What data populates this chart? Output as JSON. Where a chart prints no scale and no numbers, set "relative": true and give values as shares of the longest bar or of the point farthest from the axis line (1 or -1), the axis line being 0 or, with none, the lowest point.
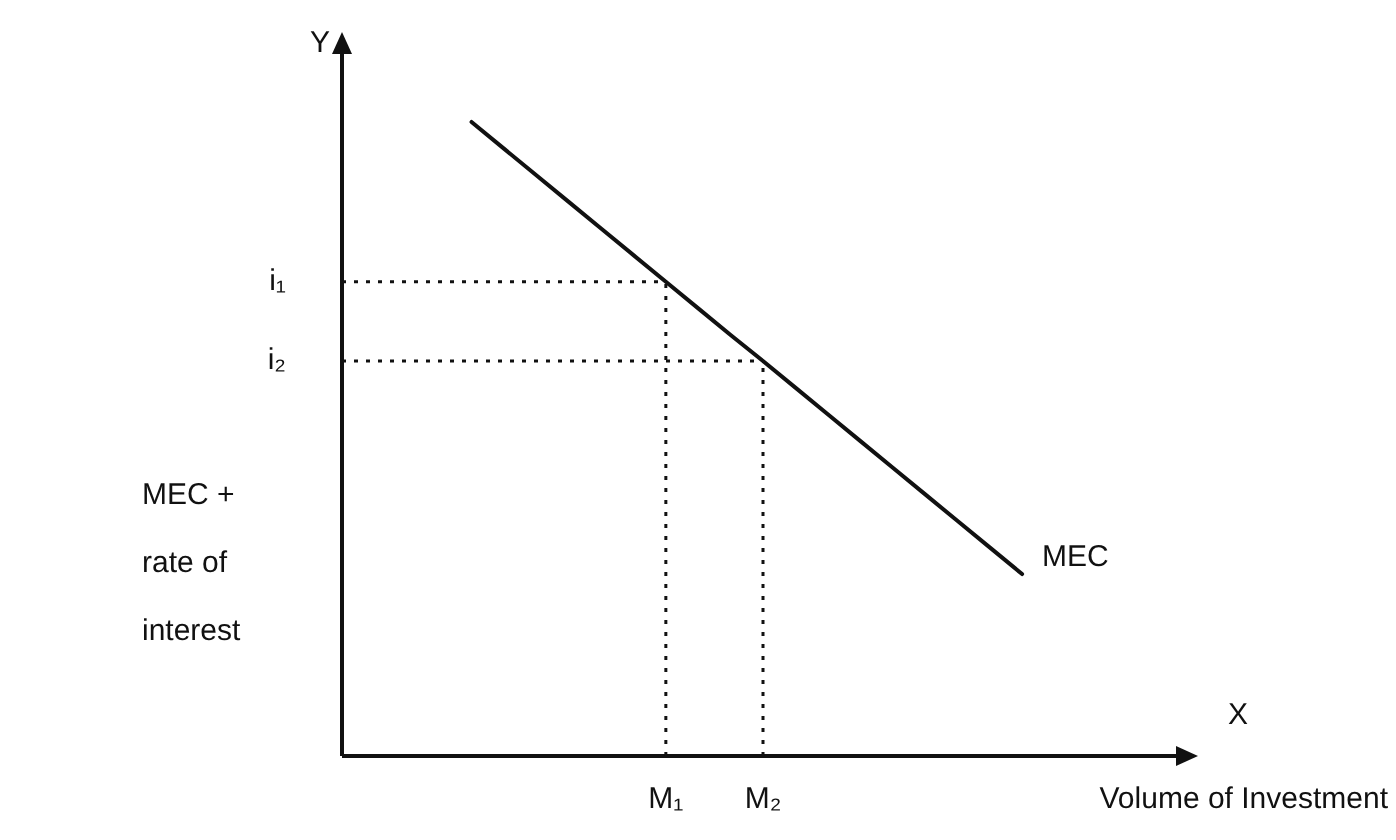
{
  "chart_data": {
    "type": "line",
    "relative": true,
    "xlabel": "Volume of Investment",
    "ylabel": "MEC + rate of interest",
    "categories": [
      null,
      null,
      null,
      null,
      null,
      null,
      null,
      null,
      null,
      null,
      "M₁",
      null,
      null,
      "M₂",
      null,
      null,
      null,
      null,
      null,
      null,
      null,
      null,
      null,
      null,
      null,
      null,
      null
    ],
    "series": [
      {
        "name": "MEC",
        "color": "#111111",
        "values": [
          null,
          null,
          null,
          null,
          1,
          0.958,
          0.916,
          0.874,
          0.832,
          0.79,
          0.748,
          0.706,
          0.664,
          0.623,
          0.581,
          0.539,
          0.497,
          0.455,
          0.413,
          0.371,
          0.329,
          0.287,
          null,
          null,
          null,
          null,
          null
        ]
      }
    ],
    "ref_lines": [
      {
        "axis": "y",
        "value": 0.748,
        "label": "i₁",
        "line_style": "dotted"
      },
      {
        "axis": "y",
        "value": 0.623,
        "label": "i₂",
        "line_style": "dotted"
      },
      {
        "axis": "x",
        "value": "M₁",
        "line_style": "dotted"
      },
      {
        "axis": "x",
        "value": "M₂",
        "line_style": "dotted"
      }
    ],
    "annotations": [
      "Y",
      "X"
    ],
    "marker": "none",
    "line_style": "solid",
    "grid": false,
    "legend": false
  }
}
